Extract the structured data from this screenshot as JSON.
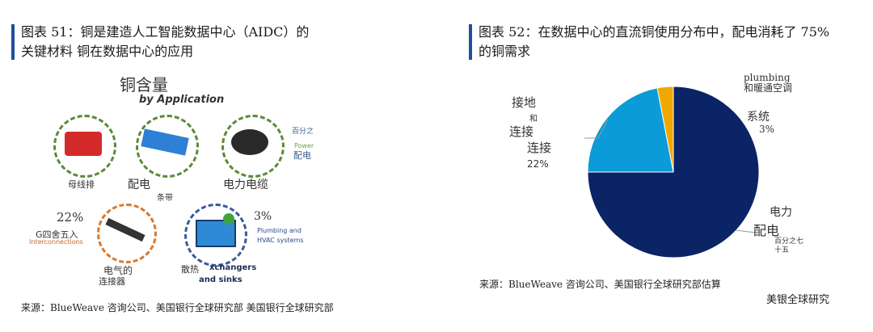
{
  "left": {
    "title_line1": "图表 51：铜是建造人工智能数据中心（AIDC）的",
    "title_line2": "关键材料 铜在数据中心的应用",
    "heading": "铜含量",
    "subheading": "by Application",
    "items": [
      {
        "label": "母线排",
        "icon": "busbar-icon"
      },
      {
        "label": "配电",
        "sublabel": "条带",
        "icon": "distribution-strip-icon"
      },
      {
        "label": "电力电缆",
        "icon": "power-cable-icon"
      },
      {
        "label": "电气的",
        "sublabel": "连接器",
        "icon": "connector-icon"
      },
      {
        "label": "散热",
        "sublabel": "xchangers",
        "sublabel2": "and sinks",
        "icon": "heat-exchanger-icon"
      }
    ],
    "power_pct": "百分之",
    "power_label": "Power",
    "power_label_cn": "配电",
    "interconnect_pct": "22%",
    "interconnect_cn": "G四舍五入",
    "interconnect_en": "Interconnections",
    "hvac_pct": "3%",
    "hvac_en_1": "Plumbing and",
    "hvac_en_2": "HVAC systems",
    "source": "来源：BlueWeave 咨询公司、美国银行全球研究部 美国银行全球研究部"
  },
  "right": {
    "title_line1": "图表 52：在数据中心的直流铜使用分布中，配电消耗了 75%",
    "title_line2": "的铜需求",
    "source": "来源：BlueWeave 咨询公司、美国银行全球研究部估算",
    "footer": "美银全球研究"
  },
  "chart_data": {
    "type": "pie",
    "slices": [
      {
        "label": "电力 配电",
        "value": 75,
        "value_label": "百分之七十五",
        "color": "#0a2466"
      },
      {
        "label": "接地 和 连接 连接",
        "value": 22,
        "value_label": "22%",
        "color": "#0b9bd8"
      },
      {
        "label": "plumbing 和暖通空调 系统",
        "value": 3,
        "value_label": "3%",
        "color": "#f0a800"
      }
    ]
  }
}
